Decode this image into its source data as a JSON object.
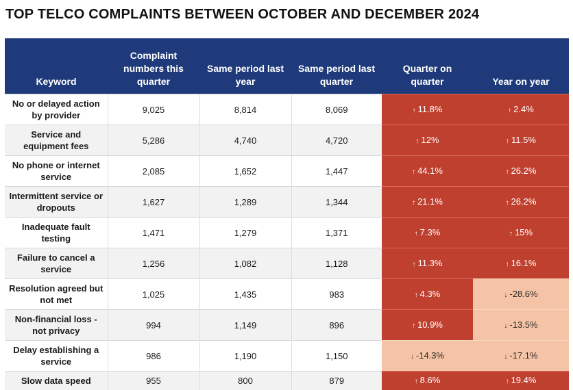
{
  "title": "TOP TELCO COMPLAINTS BETWEEN OCTOBER AND DECEMBER 2024",
  "chart_data": {
    "type": "table",
    "title": "TOP TELCO COMPLAINTS BETWEEN OCTOBER AND DECEMBER 2024",
    "columns": [
      "Keyword",
      "Complaint numbers this quarter",
      "Same period last year",
      "Same period last quarter",
      "Quarter on quarter",
      "Year on year"
    ],
    "rows": [
      {
        "keyword": "No or delayed action by provider",
        "this_quarter": "9,025",
        "last_year": "8,814",
        "last_quarter": "8,069",
        "qoq": "11.8%",
        "qoq_dir": "up",
        "yoy": "2.4%",
        "yoy_dir": "up"
      },
      {
        "keyword": "Service and equipment fees",
        "this_quarter": "5,286",
        "last_year": "4,740",
        "last_quarter": "4,720",
        "qoq": "12%",
        "qoq_dir": "up",
        "yoy": "11.5%",
        "yoy_dir": "up"
      },
      {
        "keyword": "No phone or internet service",
        "this_quarter": "2,085",
        "last_year": "1,652",
        "last_quarter": "1,447",
        "qoq": "44.1%",
        "qoq_dir": "up",
        "yoy": "26.2%",
        "yoy_dir": "up"
      },
      {
        "keyword": "Intermittent service or dropouts",
        "this_quarter": "1,627",
        "last_year": "1,289",
        "last_quarter": "1,344",
        "qoq": "21.1%",
        "qoq_dir": "up",
        "yoy": "26.2%",
        "yoy_dir": "up"
      },
      {
        "keyword": "Inadequate fault testing",
        "this_quarter": "1,471",
        "last_year": "1,279",
        "last_quarter": "1,371",
        "qoq": "7.3%",
        "qoq_dir": "up",
        "yoy": "15%",
        "yoy_dir": "up"
      },
      {
        "keyword": "Failure to cancel a service",
        "this_quarter": "1,256",
        "last_year": "1,082",
        "last_quarter": "1,128",
        "qoq": "11.3%",
        "qoq_dir": "up",
        "yoy": "16.1%",
        "yoy_dir": "up"
      },
      {
        "keyword": "Resolution agreed but not met",
        "this_quarter": "1,025",
        "last_year": "1,435",
        "last_quarter": "983",
        "qoq": "4.3%",
        "qoq_dir": "up",
        "yoy": "-28.6%",
        "yoy_dir": "down"
      },
      {
        "keyword": "Non-financial loss - not privacy",
        "this_quarter": "994",
        "last_year": "1,149",
        "last_quarter": "896",
        "qoq": "10.9%",
        "qoq_dir": "up",
        "yoy": "-13.5%",
        "yoy_dir": "down"
      },
      {
        "keyword": "Delay establishing a service",
        "this_quarter": "986",
        "last_year": "1,190",
        "last_quarter": "1,150",
        "qoq": "-14.3%",
        "qoq_dir": "down",
        "yoy": "-17.1%",
        "yoy_dir": "down"
      },
      {
        "keyword": "Slow data speed",
        "this_quarter": "955",
        "last_year": "800",
        "last_quarter": "879",
        "qoq": "8.6%",
        "qoq_dir": "up",
        "yoy": "19.4%",
        "yoy_dir": "up"
      }
    ]
  }
}
